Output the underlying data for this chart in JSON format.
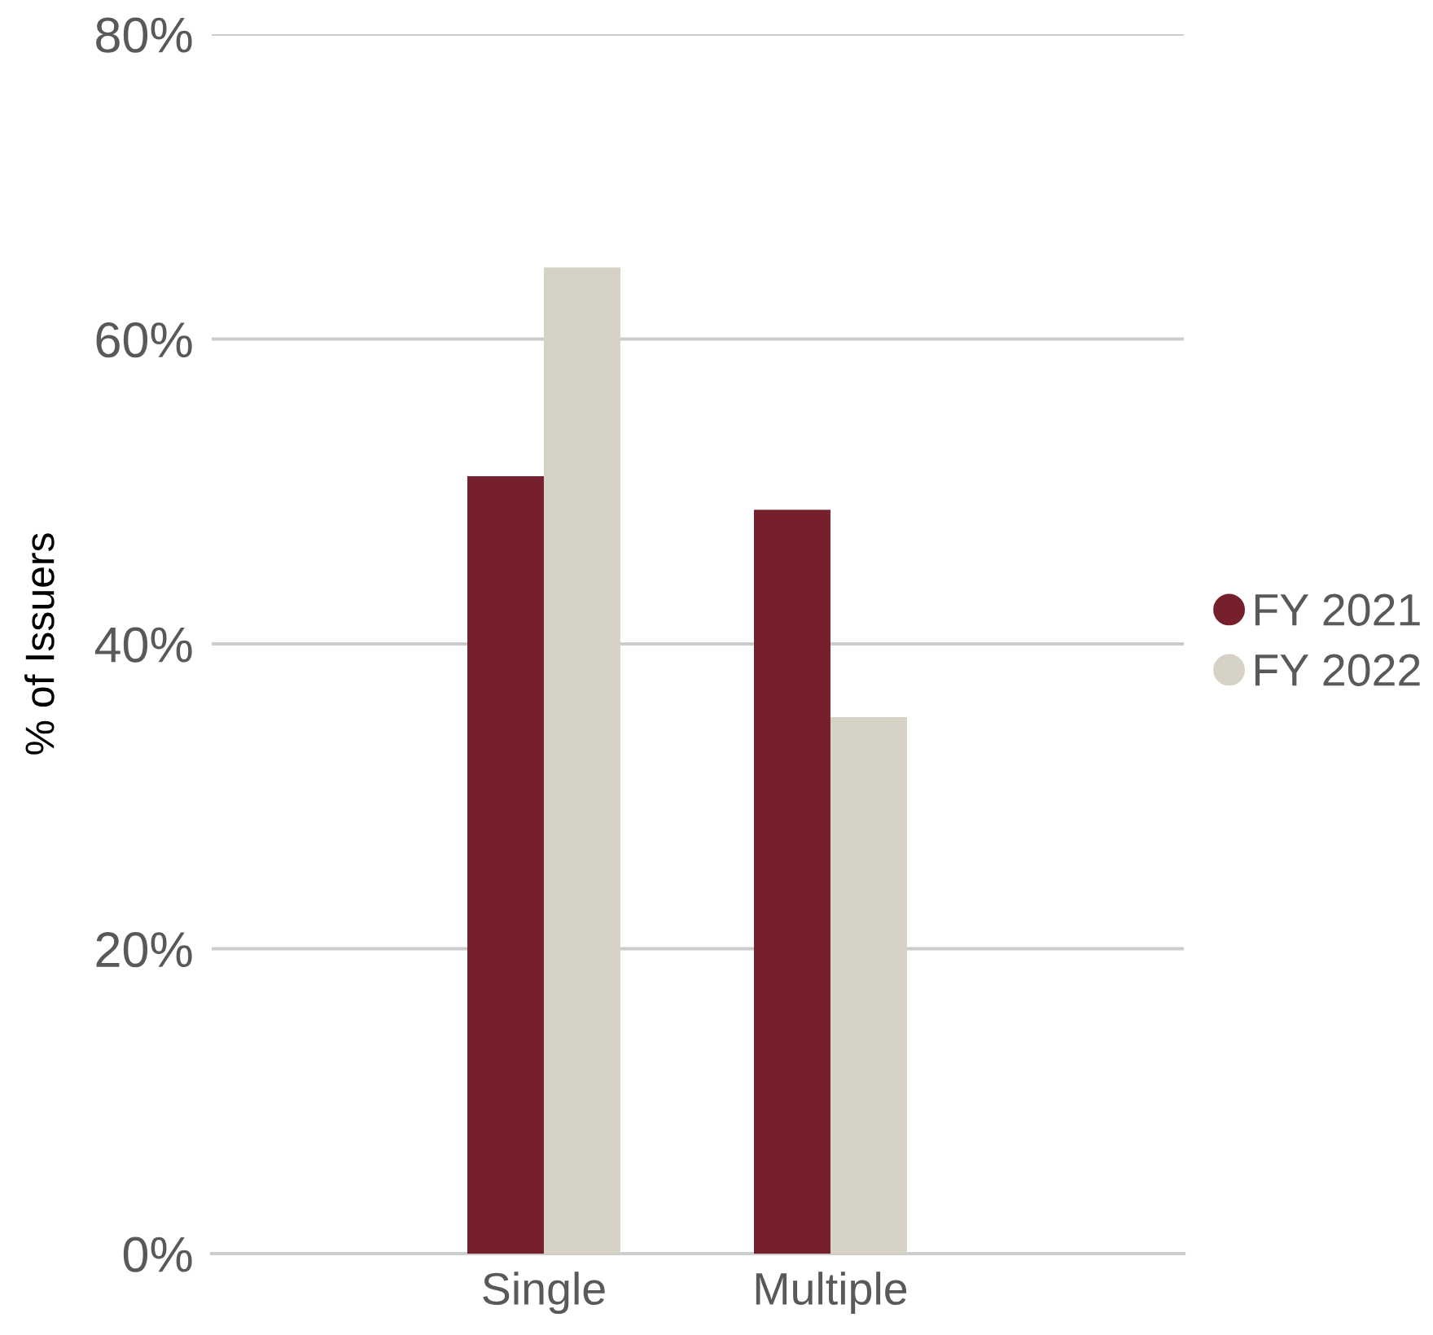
{
  "chart_data": {
    "type": "bar",
    "ylabel": "% of Issuers",
    "categories": [
      "Single",
      "Multiple"
    ],
    "series": [
      {
        "name": "FY 2021",
        "color": "#76202e",
        "values": [
          51.0,
          48.8
        ]
      },
      {
        "name": "FY 2022",
        "color": "#d6d3c6",
        "values": [
          64.7,
          35.2
        ]
      }
    ],
    "ylim": [
      0,
      80
    ],
    "yticks": [
      {
        "value": 0,
        "label": "0%"
      },
      {
        "value": 20,
        "label": "20%"
      },
      {
        "value": 40,
        "label": "40%"
      },
      {
        "value": 60,
        "label": "60%"
      },
      {
        "value": 80,
        "label": "80%"
      }
    ],
    "grid": "y",
    "legend": "right",
    "marker": "circle"
  }
}
